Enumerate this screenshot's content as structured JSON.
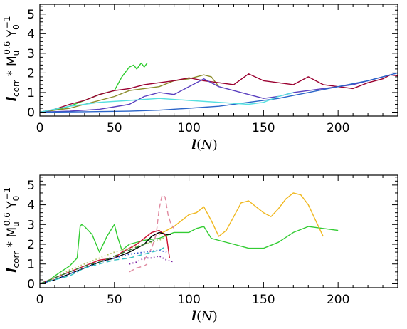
{
  "chart_data": [
    {
      "type": "line",
      "xlabel": "l(N)",
      "ylabel": "l_corr * M_u^0.6 Y_0^-1",
      "xlim": [
        0,
        240
      ],
      "ylim": [
        -0.2,
        5.5
      ],
      "x_ticks": [
        "0",
        "50",
        "100",
        "150",
        "200"
      ],
      "y_ticks": [
        "0",
        "1",
        "2",
        "3",
        "4",
        "5"
      ],
      "series": [
        {
          "color": "#2ecc2e",
          "style": "solid",
          "x": [
            0,
            5,
            10,
            20,
            30,
            40,
            50,
            55,
            60,
            63,
            65,
            68,
            70,
            72
          ],
          "y": [
            0,
            0.05,
            0.1,
            0.3,
            0.6,
            0.9,
            1.1,
            1.8,
            2.3,
            2.4,
            2.2,
            2.5,
            2.3,
            2.5
          ]
        },
        {
          "color": "#8b8b2a",
          "style": "solid",
          "x": [
            0,
            10,
            20,
            30,
            40,
            50,
            60,
            70,
            80,
            90,
            100,
            110,
            115,
            118,
            120
          ],
          "y": [
            0,
            0.1,
            0.2,
            0.4,
            0.6,
            0.8,
            1.1,
            1.2,
            1.3,
            1.6,
            1.7,
            1.9,
            1.8,
            1.5,
            1.3
          ]
        },
        {
          "color": "#9a0030",
          "style": "solid",
          "x": [
            0,
            10,
            20,
            30,
            40,
            50,
            60,
            70,
            80,
            90,
            100,
            110,
            120,
            130,
            140,
            150,
            160,
            170,
            180,
            190,
            200,
            210,
            220,
            230,
            235,
            240
          ],
          "y": [
            0,
            0.15,
            0.4,
            0.6,
            0.9,
            1.1,
            1.2,
            1.4,
            1.5,
            1.6,
            1.75,
            1.6,
            1.5,
            1.4,
            1.95,
            1.6,
            1.5,
            1.4,
            1.8,
            1.4,
            1.3,
            1.2,
            1.5,
            1.7,
            1.9,
            1.85
          ]
        },
        {
          "color": "#5a3fbf",
          "style": "solid",
          "x": [
            0,
            20,
            40,
            60,
            70,
            80,
            90,
            100,
            110,
            120,
            130,
            140,
            150,
            160,
            170,
            180,
            190,
            200,
            210,
            220,
            230,
            240
          ],
          "y": [
            0,
            0.05,
            0.15,
            0.4,
            0.8,
            1.0,
            0.9,
            1.3,
            1.7,
            1.3,
            1.1,
            0.9,
            0.7,
            0.8,
            1.0,
            1.1,
            1.2,
            1.3,
            1.4,
            1.6,
            1.8,
            2.0
          ]
        },
        {
          "color": "#2a64c8",
          "style": "solid",
          "x": [
            0,
            30,
            60,
            80,
            100,
            120,
            140,
            160,
            180,
            200,
            220,
            240
          ],
          "y": [
            0,
            0.02,
            0.05,
            0.1,
            0.2,
            0.3,
            0.5,
            0.7,
            1.0,
            1.3,
            1.6,
            2.0
          ]
        },
        {
          "color": "#55e0e0",
          "style": "solid",
          "x": [
            0,
            20,
            40,
            60,
            80,
            100,
            120,
            140,
            150,
            160,
            170
          ],
          "y": [
            0,
            0.3,
            0.5,
            0.6,
            0.7,
            0.6,
            0.5,
            0.4,
            0.5,
            0.8,
            1.0
          ]
        }
      ]
    },
    {
      "type": "line",
      "xlabel": "l(N)",
      "ylabel": "l_corr * M_u^0.6 Y_0^-1",
      "xlim": [
        0,
        240
      ],
      "ylim": [
        -0.2,
        5.5
      ],
      "x_ticks": [
        "0",
        "50",
        "100",
        "150",
        "200"
      ],
      "y_ticks": [
        "0",
        "1",
        "2",
        "3",
        "4",
        "5"
      ],
      "series": [
        {
          "color": "#33cc33",
          "style": "solid",
          "x": [
            0,
            5,
            10,
            20,
            25,
            27,
            28,
            30,
            35,
            40,
            45,
            50,
            52,
            55,
            60,
            70,
            80,
            90,
            100,
            105,
            110,
            115,
            120,
            130,
            140,
            150,
            160,
            170,
            180,
            190,
            200
          ],
          "y": [
            0,
            0.1,
            0.4,
            0.9,
            1.3,
            2.9,
            3.0,
            2.9,
            2.5,
            1.6,
            2.4,
            3.0,
            2.4,
            1.7,
            2.0,
            2.2,
            2.3,
            2.6,
            2.6,
            2.8,
            2.9,
            2.3,
            2.2,
            2.0,
            1.8,
            1.8,
            2.1,
            2.6,
            2.9,
            2.8,
            2.7
          ]
        },
        {
          "color": "#f0b820",
          "style": "solid",
          "x": [
            80,
            85,
            90,
            95,
            100,
            105,
            110,
            115,
            120,
            125,
            130,
            135,
            140,
            145,
            150,
            155,
            160,
            165,
            170,
            175,
            180,
            185,
            190
          ],
          "y": [
            2.5,
            2.7,
            2.9,
            3.2,
            3.5,
            3.6,
            3.9,
            3.2,
            2.4,
            2.7,
            3.4,
            4.1,
            4.2,
            3.9,
            3.6,
            3.4,
            3.8,
            4.3,
            4.6,
            4.5,
            4.0,
            3.2,
            2.4
          ]
        },
        {
          "color": "#cc1030",
          "style": "solid",
          "x": [
            0,
            10,
            20,
            30,
            40,
            50,
            55,
            60,
            65,
            70,
            75,
            80,
            85,
            87
          ],
          "y": [
            0,
            0.3,
            0.6,
            0.9,
            1.2,
            1.3,
            1.6,
            1.8,
            2.0,
            2.3,
            2.6,
            2.7,
            2.4,
            1.3
          ]
        },
        {
          "color": "#000000",
          "style": "solid",
          "x": [
            0,
            10,
            20,
            30,
            40,
            50,
            60,
            70,
            75,
            80,
            85,
            88
          ],
          "y": [
            0,
            0.2,
            0.5,
            0.8,
            1.1,
            1.3,
            1.6,
            2.0,
            2.4,
            2.6,
            2.5,
            2.5
          ]
        },
        {
          "color": "#e08aa0",
          "style": "dashed",
          "x": [
            70,
            75,
            78,
            80,
            82,
            84,
            86,
            88,
            90
          ],
          "y": [
            1.2,
            1.8,
            2.5,
            3.8,
            4.5,
            4.4,
            3.5,
            3.0,
            2.8
          ]
        },
        {
          "color": "#e08aa0",
          "style": "dashed",
          "x": [
            60,
            65,
            70,
            72
          ],
          "y": [
            0.6,
            0.8,
            0.9,
            1.0
          ]
        },
        {
          "color": "#b0c060",
          "style": "dotted",
          "x": [
            0,
            10,
            20,
            30,
            40,
            50,
            60,
            70,
            80,
            85
          ],
          "y": [
            0,
            0.3,
            0.7,
            1.0,
            1.3,
            1.6,
            1.8,
            2.0,
            2.2,
            2.4
          ]
        },
        {
          "color": "#3050d0",
          "style": "dotted",
          "x": [
            0,
            10,
            20,
            30,
            40,
            50,
            60,
            70,
            80,
            85
          ],
          "y": [
            0,
            0.2,
            0.5,
            0.8,
            1.1,
            1.3,
            1.5,
            1.6,
            1.7,
            1.6
          ]
        },
        {
          "color": "#30c0c0",
          "style": "dashed",
          "x": [
            0,
            10,
            20,
            30,
            40,
            50,
            60,
            70,
            80,
            85
          ],
          "y": [
            0,
            0.2,
            0.4,
            0.8,
            1.0,
            1.2,
            1.3,
            1.5,
            1.7,
            1.9
          ]
        },
        {
          "color": "#7b1fa2",
          "style": "dotted",
          "x": [
            60,
            65,
            70,
            75,
            80,
            85,
            90
          ],
          "y": [
            1.0,
            1.1,
            1.3,
            1.3,
            1.4,
            1.2,
            1.1
          ]
        },
        {
          "color": "#2e7d32",
          "style": "dashed",
          "x": [
            0,
            10,
            20,
            30,
            40,
            50,
            60,
            70,
            80
          ],
          "y": [
            0,
            0.3,
            0.6,
            0.9,
            1.1,
            1.4,
            1.7,
            2.0,
            2.3
          ]
        }
      ]
    }
  ]
}
